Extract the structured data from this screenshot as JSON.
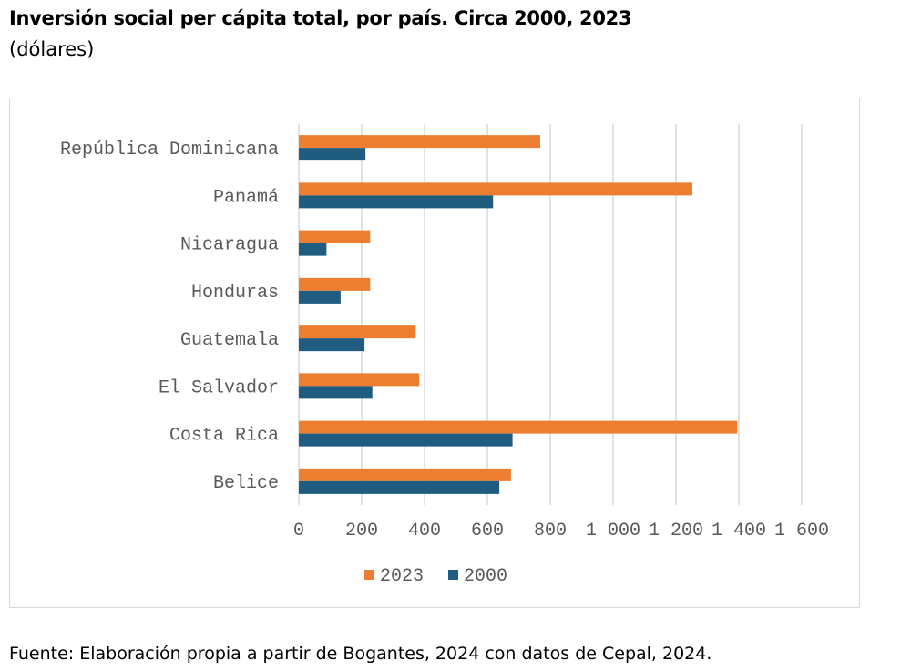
{
  "title": "Inversión social per cápita total, por país. Circa 2000, 2023",
  "subtitle": "(dólares)",
  "source": "Fuente: Elaboración propia a partir de Bogantes, 2024 con datos de Cepal, 2024.",
  "colors": {
    "series_2023": "#ED7D31",
    "series_2000": "#1F5C7F",
    "grid": "#D9D9D9"
  },
  "chart_data": {
    "type": "bar",
    "orientation": "horizontal",
    "categories": [
      "República Dominicana",
      "Panamá",
      "Nicaragua",
      "Honduras",
      "Guatemala",
      "El Salvador",
      "Costa Rica",
      "Belice"
    ],
    "series": [
      {
        "name": "2023",
        "values": [
          768,
          1252,
          227,
          227,
          372,
          383,
          1395,
          675
        ]
      },
      {
        "name": "2000",
        "values": [
          212,
          618,
          88,
          133,
          209,
          234,
          680,
          638
        ]
      }
    ],
    "x_ticks": [
      "0",
      "200",
      "400",
      "600",
      "800",
      "1 000",
      "1 200",
      "1 400",
      "1 600"
    ],
    "xlim": [
      0,
      1600
    ],
    "grid": true,
    "legend": "bottom"
  }
}
